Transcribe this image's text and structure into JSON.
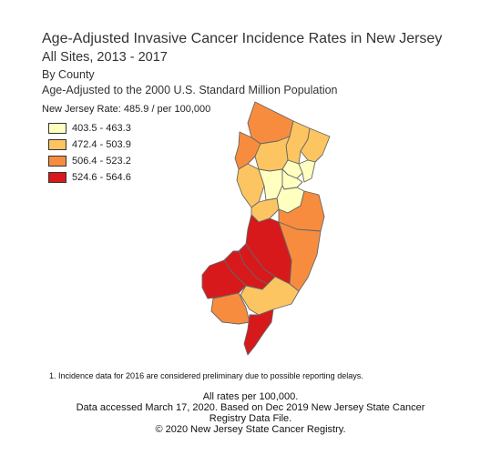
{
  "title": "Age-Adjusted Invasive Cancer Incidence Rates in New Jersey",
  "subtitle": "All Sites, 2013 - 2017",
  "subtitle2": "By County",
  "subtitle3": "Age-Adjusted to the 2000 U.S. Standard Million Population",
  "state_rate": "New Jersey Rate: 485.9 / per 100,000",
  "legend": [
    {
      "label": "403.5 - 463.3",
      "color": "#ffffc0"
    },
    {
      "label": "472.4 - 503.9",
      "color": "#fdc561"
    },
    {
      "label": "506.4 - 523.2",
      "color": "#f78c3f"
    },
    {
      "label": "524.6 - 564.6",
      "color": "#d7191c"
    }
  ],
  "footnote": "1. Incidence data for 2016 are considered preliminary due to possible reporting delays.",
  "footer": [
    "All rates per 100,000.",
    "Data accessed March 17, 2020. Based on Dec 2019 New Jersey State Cancer",
    "Registry Data File.",
    "© 2020 New Jersey State Cancer Registry."
  ]
}
